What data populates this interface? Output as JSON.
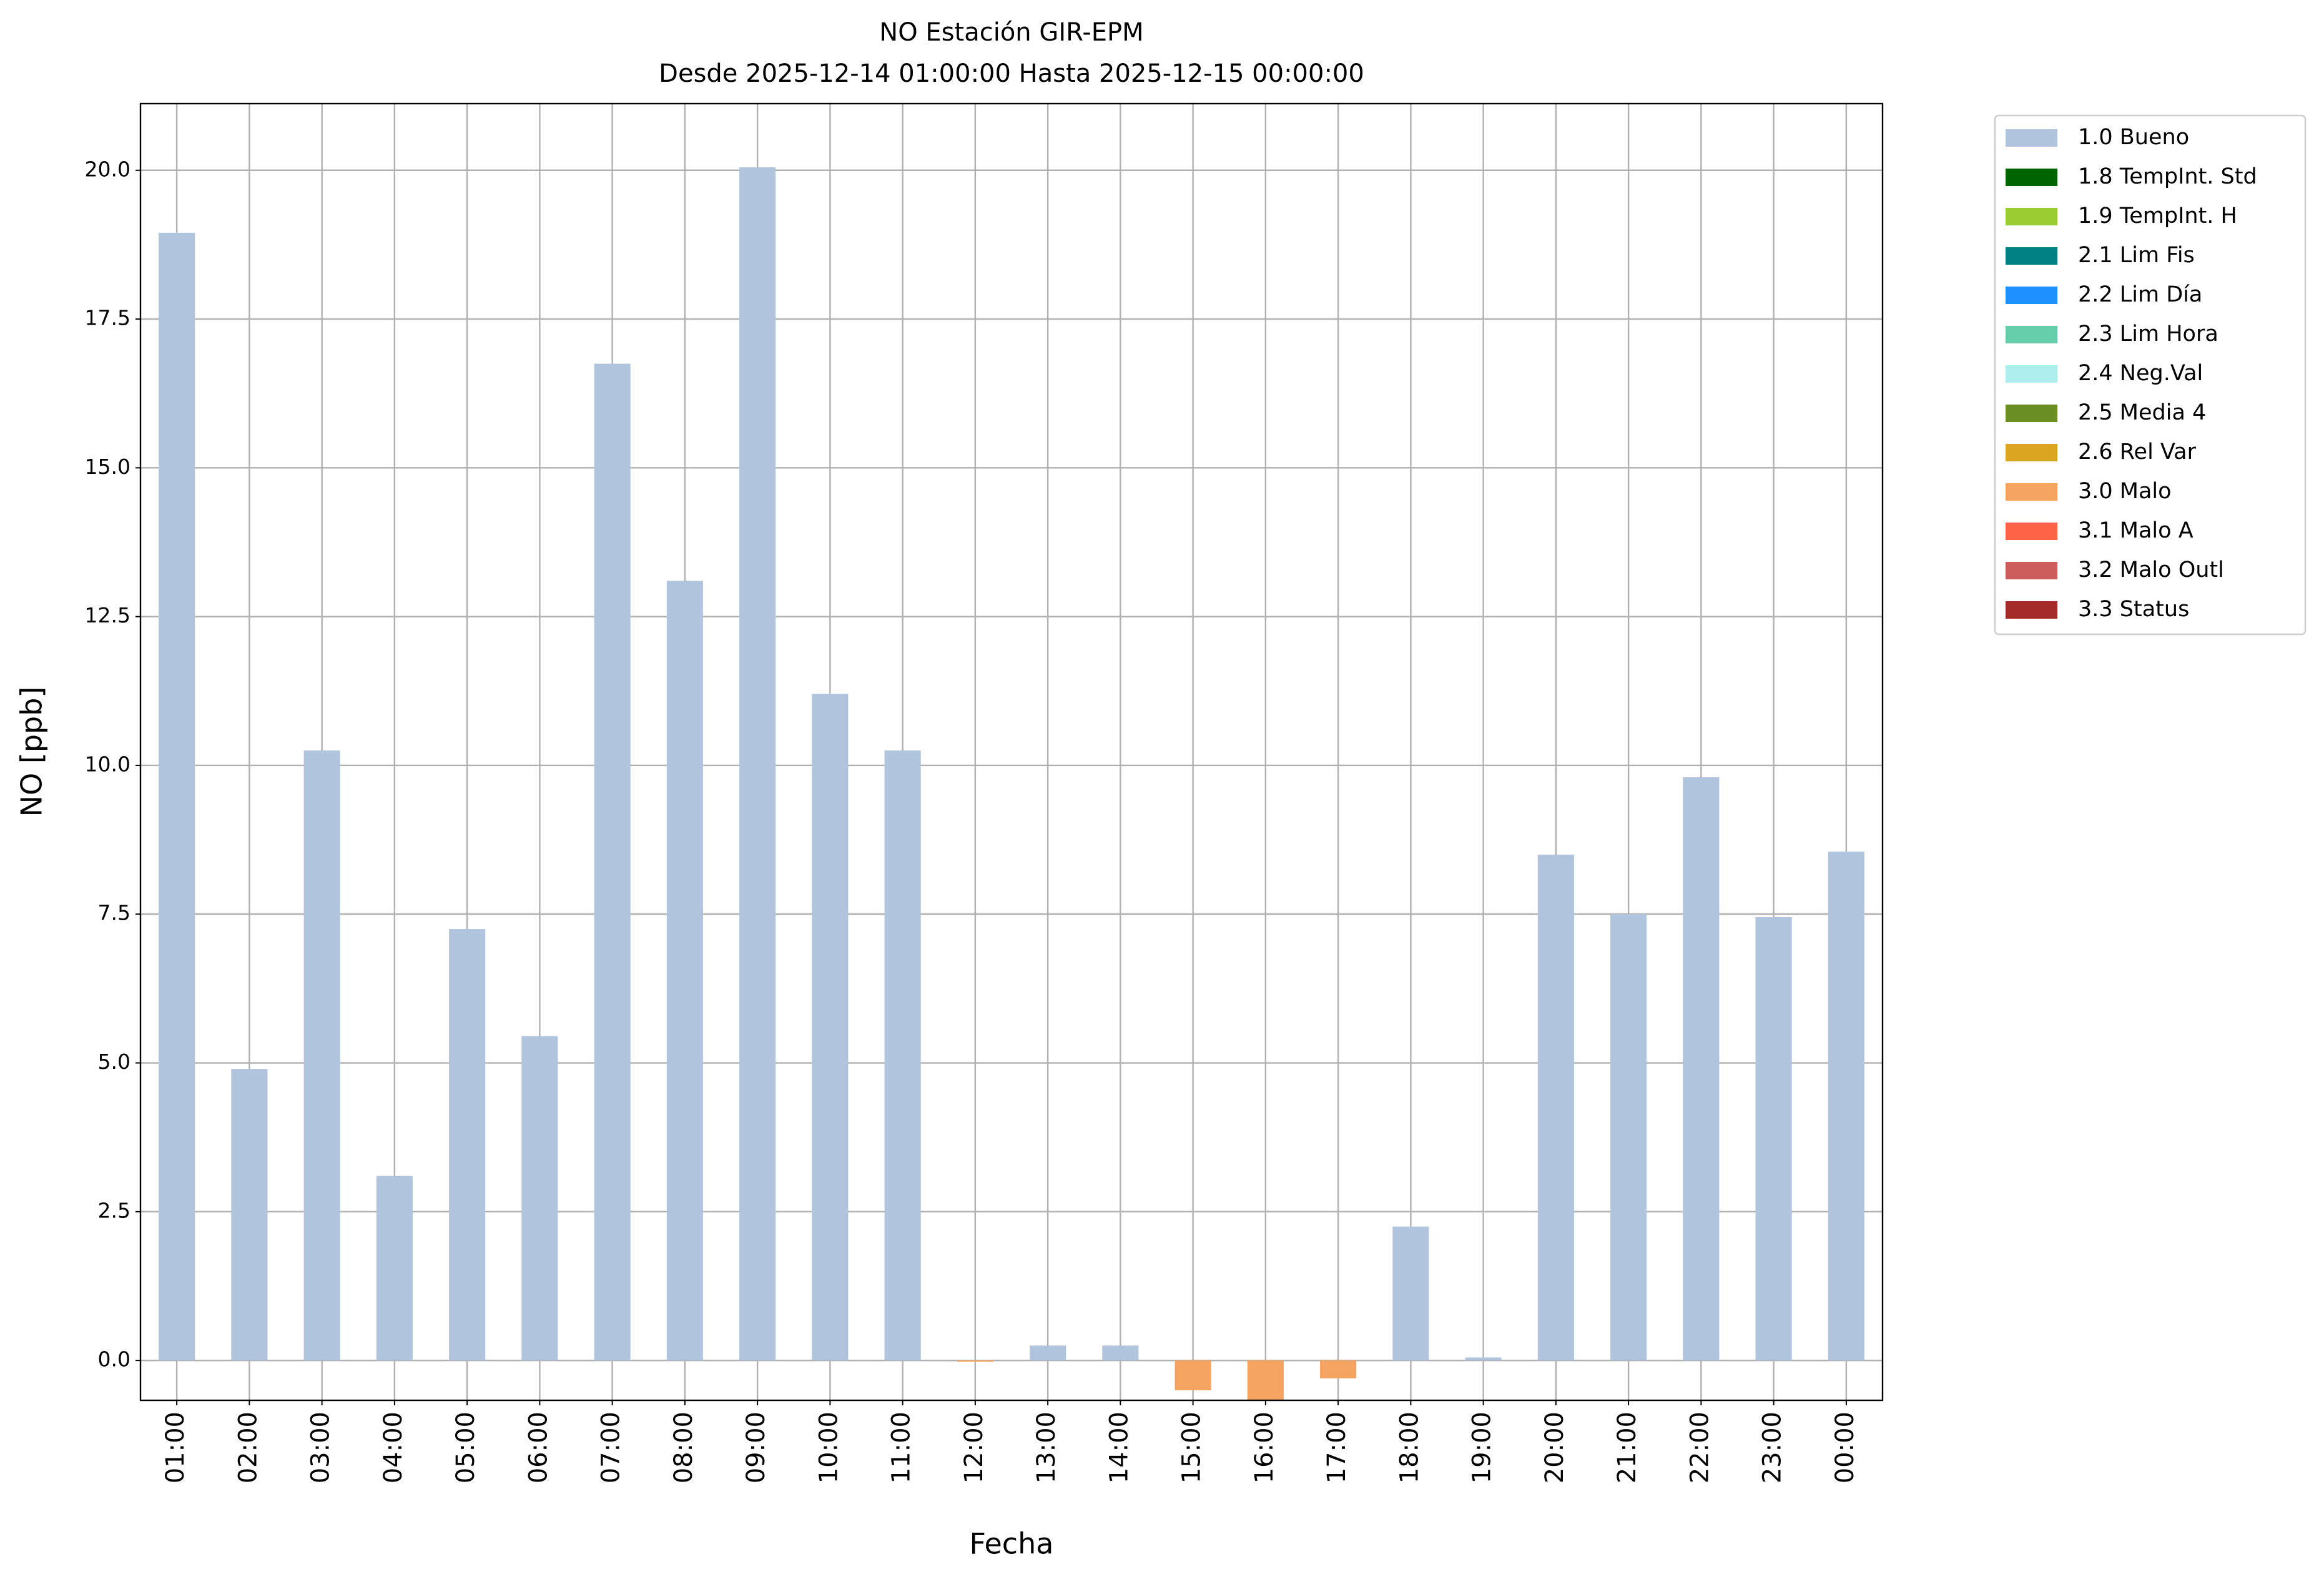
{
  "chart_data": {
    "type": "bar",
    "title": "NO Estación GIR-EPM",
    "subtitle": "Desde 2025-12-14 01:00:00 Hasta 2025-12-15 00:00:00",
    "x_label": "Fecha",
    "y_label": "NO [ppb]",
    "categories": [
      "01:00",
      "02:00",
      "03:00",
      "04:00",
      "05:00",
      "06:00",
      "07:00",
      "08:00",
      "09:00",
      "10:00",
      "11:00",
      "12:00",
      "13:00",
      "14:00",
      "15:00",
      "16:00",
      "17:00",
      "18:00",
      "19:00",
      "20:00",
      "21:00",
      "22:00",
      "23:00",
      "00:00"
    ],
    "series": [
      {
        "name": "1.0 Bueno",
        "color": "#b0c4de",
        "values": [
          18.95,
          4.9,
          10.25,
          3.1,
          7.25,
          5.45,
          16.75,
          13.1,
          20.05,
          11.2,
          10.25,
          null,
          0.25,
          0.25,
          null,
          null,
          null,
          2.25,
          0.05,
          8.5,
          7.5,
          9.8,
          7.45,
          8.55
        ]
      },
      {
        "name": "1.8 TempInt. Std",
        "color": "#006400",
        "values": [
          null,
          null,
          null,
          null,
          null,
          null,
          null,
          null,
          null,
          null,
          null,
          null,
          null,
          null,
          null,
          null,
          null,
          null,
          null,
          null,
          null,
          null,
          null,
          null
        ]
      },
      {
        "name": "1.9 TempInt. H",
        "color": "#9acd32",
        "values": [
          null,
          null,
          null,
          null,
          null,
          null,
          null,
          null,
          null,
          null,
          null,
          null,
          null,
          null,
          null,
          null,
          null,
          null,
          null,
          null,
          null,
          null,
          null,
          null
        ]
      },
      {
        "name": "2.1 Lim Fis",
        "color": "#008080",
        "values": [
          null,
          null,
          null,
          null,
          null,
          null,
          null,
          null,
          null,
          null,
          null,
          null,
          null,
          null,
          null,
          null,
          null,
          null,
          null,
          null,
          null,
          null,
          null,
          null
        ]
      },
      {
        "name": "2.2 Lim Día",
        "color": "#1e90ff",
        "values": [
          null,
          null,
          null,
          null,
          null,
          null,
          null,
          null,
          null,
          null,
          null,
          null,
          null,
          null,
          null,
          null,
          null,
          null,
          null,
          null,
          null,
          null,
          null,
          null
        ]
      },
      {
        "name": "2.3 Lim Hora",
        "color": "#66cdaa",
        "values": [
          null,
          null,
          null,
          null,
          null,
          null,
          null,
          null,
          null,
          null,
          null,
          null,
          null,
          null,
          null,
          null,
          null,
          null,
          null,
          null,
          null,
          null,
          null,
          null
        ]
      },
      {
        "name": "2.4 Neg.Val",
        "color": "#afeeee",
        "values": [
          null,
          null,
          null,
          null,
          null,
          null,
          null,
          null,
          null,
          null,
          null,
          null,
          null,
          null,
          null,
          null,
          null,
          null,
          null,
          null,
          null,
          null,
          null,
          null
        ]
      },
      {
        "name": "2.5 Media 4",
        "color": "#6b8e23",
        "values": [
          null,
          null,
          null,
          null,
          null,
          null,
          null,
          null,
          null,
          null,
          null,
          null,
          null,
          null,
          null,
          null,
          null,
          null,
          null,
          null,
          null,
          null,
          null,
          null
        ]
      },
      {
        "name": "2.6 Rel Var",
        "color": "#daa520",
        "values": [
          null,
          null,
          null,
          null,
          null,
          null,
          null,
          null,
          null,
          null,
          null,
          null,
          null,
          null,
          null,
          null,
          null,
          null,
          null,
          null,
          null,
          null,
          null,
          null
        ]
      },
      {
        "name": "3.0 Malo",
        "color": "#f4a460",
        "values": [
          null,
          null,
          null,
          null,
          null,
          null,
          null,
          null,
          null,
          null,
          null,
          -0.02,
          null,
          null,
          -0.5,
          -0.7,
          -0.3,
          null,
          null,
          null,
          null,
          null,
          null,
          null
        ]
      },
      {
        "name": "3.1 Malo A",
        "color": "#ff6347",
        "values": [
          null,
          null,
          null,
          null,
          null,
          null,
          null,
          null,
          null,
          null,
          null,
          null,
          null,
          null,
          null,
          null,
          null,
          null,
          null,
          null,
          null,
          null,
          null,
          null
        ]
      },
      {
        "name": "3.2 Malo Outl",
        "color": "#cd5c5c",
        "values": [
          null,
          null,
          null,
          null,
          null,
          null,
          null,
          null,
          null,
          null,
          null,
          null,
          null,
          null,
          null,
          null,
          null,
          null,
          null,
          null,
          null,
          null,
          null,
          null
        ]
      },
      {
        "name": "3.3 Status",
        "color": "#a52a2a",
        "values": [
          null,
          null,
          null,
          null,
          null,
          null,
          null,
          null,
          null,
          null,
          null,
          null,
          null,
          null,
          null,
          null,
          null,
          null,
          null,
          null,
          null,
          null,
          null,
          null
        ]
      }
    ],
    "ylim": [
      -0.67,
      21.12
    ],
    "yticks": [
      {
        "value": 0,
        "label": "0.0"
      },
      2.5,
      {
        "value": 5,
        "label": "5.0"
      },
      7.5,
      {
        "value": 10,
        "label": "10.0"
      },
      12.5,
      {
        "value": 15,
        "label": "15.0"
      },
      17.5,
      {
        "value": 20,
        "label": "20.0"
      }
    ],
    "grid": true,
    "legend": "outside-right"
  }
}
